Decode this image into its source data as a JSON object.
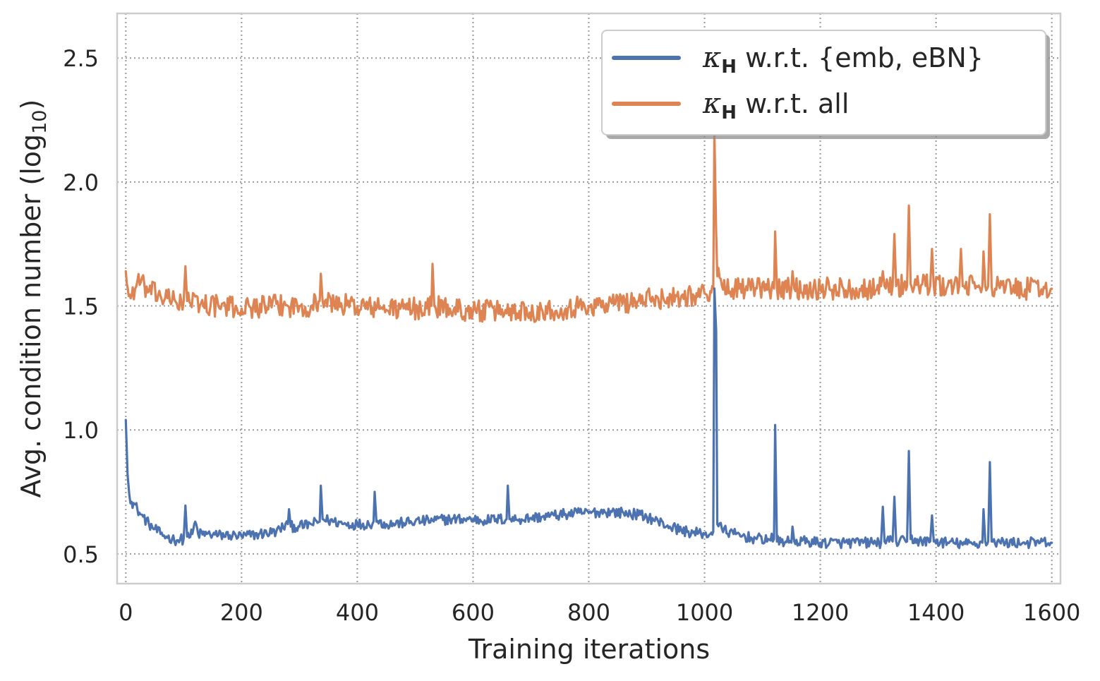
{
  "chart_data": {
    "type": "line",
    "title": "",
    "xlabel": "Training iterations",
    "ylabel": "Avg. condition number (log",
    "ylabel_subscript": "10",
    "ylabel_close": ")",
    "xlim": [
      -15,
      1615
    ],
    "ylim": [
      0.38,
      2.68
    ],
    "xticks": [
      0,
      200,
      400,
      600,
      800,
      1000,
      1200,
      1400,
      1600
    ],
    "xtick_labels": [
      "0",
      "200",
      "400",
      "600",
      "800",
      "1000",
      "1200",
      "1400",
      "1600"
    ],
    "yticks": [
      0.5,
      1.0,
      1.5,
      2.0,
      2.5
    ],
    "ytick_labels": [
      "0.5",
      "1.0",
      "1.5",
      "2.0",
      "2.5"
    ],
    "grid": true,
    "legend_position": "top-right",
    "series": [
      {
        "name": "κ_H w.r.t. {emb, eBN}",
        "legend_symbol": "κ",
        "legend_subscript": "H",
        "legend_text": " w.r.t. {emb, eBN}",
        "color": "#4c72b0",
        "points": [
          [
            0,
            1.04
          ],
          [
            3,
            0.82
          ],
          [
            6,
            0.74
          ],
          [
            10,
            0.71
          ],
          [
            15,
            0.7
          ],
          [
            20,
            0.68
          ],
          [
            25,
            0.66
          ],
          [
            30,
            0.65
          ],
          [
            40,
            0.62
          ],
          [
            50,
            0.6
          ],
          [
            60,
            0.58
          ],
          [
            70,
            0.57
          ],
          [
            80,
            0.56
          ],
          [
            90,
            0.555
          ],
          [
            100,
            0.56
          ],
          [
            103,
            0.695
          ],
          [
            106,
            0.57
          ],
          [
            115,
            0.58
          ],
          [
            120,
            0.63
          ],
          [
            125,
            0.58
          ],
          [
            140,
            0.58
          ],
          [
            160,
            0.575
          ],
          [
            180,
            0.575
          ],
          [
            200,
            0.57
          ],
          [
            230,
            0.58
          ],
          [
            260,
            0.59
          ],
          [
            280,
            0.62
          ],
          [
            282,
            0.68
          ],
          [
            285,
            0.61
          ],
          [
            300,
            0.61
          ],
          [
            320,
            0.62
          ],
          [
            335,
            0.63
          ],
          [
            337,
            0.775
          ],
          [
            340,
            0.64
          ],
          [
            360,
            0.63
          ],
          [
            380,
            0.62
          ],
          [
            400,
            0.62
          ],
          [
            420,
            0.62
          ],
          [
            428,
            0.63
          ],
          [
            430,
            0.75
          ],
          [
            433,
            0.63
          ],
          [
            450,
            0.62
          ],
          [
            480,
            0.625
          ],
          [
            500,
            0.63
          ],
          [
            530,
            0.635
          ],
          [
            560,
            0.64
          ],
          [
            580,
            0.64
          ],
          [
            600,
            0.64
          ],
          [
            620,
            0.635
          ],
          [
            640,
            0.64
          ],
          [
            658,
            0.64
          ],
          [
            660,
            0.775
          ],
          [
            663,
            0.64
          ],
          [
            680,
            0.64
          ],
          [
            700,
            0.645
          ],
          [
            720,
            0.65
          ],
          [
            740,
            0.655
          ],
          [
            760,
            0.66
          ],
          [
            780,
            0.665
          ],
          [
            800,
            0.665
          ],
          [
            820,
            0.67
          ],
          [
            840,
            0.67
          ],
          [
            860,
            0.665
          ],
          [
            880,
            0.66
          ],
          [
            900,
            0.65
          ],
          [
            920,
            0.63
          ],
          [
            940,
            0.61
          ],
          [
            960,
            0.595
          ],
          [
            980,
            0.585
          ],
          [
            1000,
            0.58
          ],
          [
            1010,
            0.58
          ],
          [
            1015,
            0.59
          ],
          [
            1017,
            1.57
          ],
          [
            1020,
            1.4
          ],
          [
            1022,
            0.62
          ],
          [
            1030,
            0.6
          ],
          [
            1050,
            0.58
          ],
          [
            1070,
            0.57
          ],
          [
            1090,
            0.56
          ],
          [
            1110,
            0.56
          ],
          [
            1120,
            0.56
          ],
          [
            1122,
            1.02
          ],
          [
            1125,
            0.55
          ],
          [
            1140,
            0.55
          ],
          [
            1150,
            0.545
          ],
          [
            1152,
            0.61
          ],
          [
            1155,
            0.55
          ],
          [
            1180,
            0.55
          ],
          [
            1200,
            0.545
          ],
          [
            1230,
            0.545
          ],
          [
            1260,
            0.545
          ],
          [
            1290,
            0.545
          ],
          [
            1305,
            0.545
          ],
          [
            1308,
            0.69
          ],
          [
            1311,
            0.55
          ],
          [
            1325,
            0.55
          ],
          [
            1328,
            0.73
          ],
          [
            1331,
            0.55
          ],
          [
            1350,
            0.55
          ],
          [
            1353,
            0.915
          ],
          [
            1356,
            0.56
          ],
          [
            1375,
            0.55
          ],
          [
            1390,
            0.55
          ],
          [
            1393,
            0.655
          ],
          [
            1396,
            0.55
          ],
          [
            1420,
            0.545
          ],
          [
            1450,
            0.54
          ],
          [
            1470,
            0.54
          ],
          [
            1480,
            0.545
          ],
          [
            1482,
            0.68
          ],
          [
            1485,
            0.55
          ],
          [
            1490,
            0.55
          ],
          [
            1493,
            0.87
          ],
          [
            1496,
            0.55
          ],
          [
            1520,
            0.545
          ],
          [
            1550,
            0.545
          ],
          [
            1580,
            0.545
          ],
          [
            1600,
            0.545
          ]
        ]
      },
      {
        "name": "κ_H w.r.t. all",
        "legend_symbol": "κ",
        "legend_subscript": "H",
        "legend_text": " w.r.t. all",
        "color": "#dd8452",
        "points": [
          [
            0,
            1.64
          ],
          [
            5,
            1.54
          ],
          [
            10,
            1.54
          ],
          [
            20,
            1.6
          ],
          [
            40,
            1.56
          ],
          [
            60,
            1.54
          ],
          [
            80,
            1.52
          ],
          [
            100,
            1.52
          ],
          [
            103,
            1.66
          ],
          [
            106,
            1.52
          ],
          [
            130,
            1.51
          ],
          [
            160,
            1.5
          ],
          [
            200,
            1.49
          ],
          [
            240,
            1.5
          ],
          [
            280,
            1.5
          ],
          [
            300,
            1.5
          ],
          [
            320,
            1.5
          ],
          [
            335,
            1.52
          ],
          [
            337,
            1.63
          ],
          [
            340,
            1.52
          ],
          [
            360,
            1.51
          ],
          [
            400,
            1.5
          ],
          [
            440,
            1.49
          ],
          [
            480,
            1.49
          ],
          [
            520,
            1.49
          ],
          [
            528,
            1.5
          ],
          [
            530,
            1.67
          ],
          [
            533,
            1.5
          ],
          [
            560,
            1.49
          ],
          [
            600,
            1.48
          ],
          [
            640,
            1.48
          ],
          [
            680,
            1.48
          ],
          [
            720,
            1.48
          ],
          [
            760,
            1.49
          ],
          [
            800,
            1.5
          ],
          [
            840,
            1.51
          ],
          [
            880,
            1.52
          ],
          [
            920,
            1.53
          ],
          [
            960,
            1.54
          ],
          [
            1000,
            1.55
          ],
          [
            1010,
            1.56
          ],
          [
            1015,
            1.57
          ],
          [
            1017,
            2.2
          ],
          [
            1020,
            1.8
          ],
          [
            1022,
            1.62
          ],
          [
            1030,
            1.58
          ],
          [
            1060,
            1.57
          ],
          [
            1090,
            1.57
          ],
          [
            1120,
            1.57
          ],
          [
            1122,
            1.8
          ],
          [
            1125,
            1.57
          ],
          [
            1150,
            1.57
          ],
          [
            1152,
            1.64
          ],
          [
            1155,
            1.57
          ],
          [
            1200,
            1.57
          ],
          [
            1240,
            1.57
          ],
          [
            1280,
            1.57
          ],
          [
            1305,
            1.58
          ],
          [
            1308,
            1.64
          ],
          [
            1311,
            1.58
          ],
          [
            1325,
            1.58
          ],
          [
            1328,
            1.79
          ],
          [
            1331,
            1.58
          ],
          [
            1350,
            1.58
          ],
          [
            1353,
            1.905
          ],
          [
            1356,
            1.59
          ],
          [
            1390,
            1.58
          ],
          [
            1393,
            1.73
          ],
          [
            1396,
            1.58
          ],
          [
            1420,
            1.58
          ],
          [
            1440,
            1.58
          ],
          [
            1443,
            1.73
          ],
          [
            1446,
            1.58
          ],
          [
            1470,
            1.58
          ],
          [
            1480,
            1.58
          ],
          [
            1482,
            1.72
          ],
          [
            1485,
            1.58
          ],
          [
            1490,
            1.58
          ],
          [
            1493,
            1.87
          ],
          [
            1496,
            1.58
          ],
          [
            1520,
            1.57
          ],
          [
            1560,
            1.57
          ],
          [
            1600,
            1.57
          ]
        ]
      }
    ]
  }
}
